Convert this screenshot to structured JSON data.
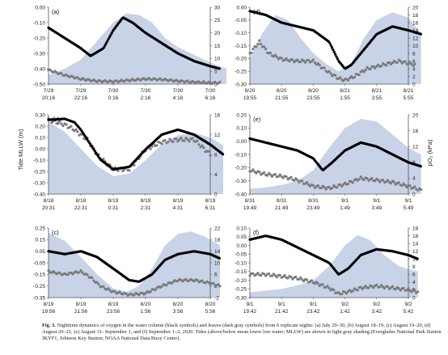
{
  "caption": {
    "label": "Fig. 3.",
    "text": "Nighttime dynamics of oxygen in the water column (black symbols) and leaves (dark gray symbols) from 6 replicate nights: (a) July 29–30, (b) August 18–19, (c) August 19–20, (d) August 20–21, (e) August 31- September 1, and (f) September 1–2, 2020. Tides (above/below mean lower low water; MLLW) are shown in light gray shading (Everglades National Park Station JKYF1, Johnson Key Station; NOAA National Data Buoy Center)."
  },
  "axis_titles": {
    "left": "Tide MLLW (m)",
    "right": "pO₂ (kPa)"
  },
  "colors": {
    "tide": "#c8d3e8",
    "water": "#000000",
    "leaf": "#7a7a7a"
  },
  "chart_data": [
    {
      "panel": "(a)",
      "type": "area",
      "ylim": [
        -0.5,
        0.0
      ],
      "yticks": [
        "0.00",
        "-0.10",
        "-0.20",
        "-0.30",
        "-0.40",
        "-0.50"
      ],
      "y2lim": [
        0,
        30
      ],
      "y2ticks": [
        "30",
        "25",
        "20",
        "15",
        "10",
        "5",
        "0"
      ],
      "xticks": [
        [
          "7/29",
          "20:16"
        ],
        [
          "7/29",
          "22:16"
        ],
        [
          "7/30",
          "0:16"
        ],
        [
          "7/30",
          "2:16"
        ],
        [
          "7/30",
          "4:16"
        ],
        [
          "7/30",
          "6:16"
        ]
      ],
      "tide": [
        [
          0,
          -0.44
        ],
        [
          0.5,
          -0.4
        ],
        [
          1,
          -0.34
        ],
        [
          1.5,
          -0.22
        ],
        [
          2,
          -0.1
        ],
        [
          2.4,
          -0.04
        ],
        [
          2.8,
          -0.05
        ],
        [
          3.2,
          -0.1
        ],
        [
          3.6,
          -0.2
        ],
        [
          4,
          -0.26
        ],
        [
          4.5,
          -0.31
        ],
        [
          5,
          -0.36
        ],
        [
          5.5,
          -0.4
        ]
      ],
      "water": [
        [
          0,
          22
        ],
        [
          0.5,
          18
        ],
        [
          1,
          14
        ],
        [
          1.3,
          11
        ],
        [
          1.7,
          14
        ],
        [
          2,
          21
        ],
        [
          2.3,
          26
        ],
        [
          2.6,
          24
        ],
        [
          3,
          20
        ],
        [
          3.5,
          16
        ],
        [
          4,
          12
        ],
        [
          4.5,
          9
        ],
        [
          5,
          7
        ],
        [
          5.3,
          6
        ]
      ],
      "leaf": [
        [
          0,
          5.5
        ],
        [
          0.5,
          3.5
        ],
        [
          1,
          2
        ],
        [
          1.5,
          1.2
        ],
        [
          2,
          1
        ],
        [
          2.5,
          1.5
        ],
        [
          3,
          2
        ],
        [
          3.5,
          1.8
        ],
        [
          4,
          1.2
        ],
        [
          4.5,
          0.8
        ],
        [
          5,
          0.5
        ],
        [
          5.3,
          0.5
        ]
      ]
    },
    {
      "panel": "(b)",
      "type": "area",
      "ylim": [
        -0.4,
        0.3
      ],
      "yticks": [
        "0.30",
        "0.20",
        "0.10",
        "0.00",
        "-0.10",
        "-0.20",
        "-0.30",
        "-0.40"
      ],
      "y2lim": [
        0,
        16
      ],
      "y2ticks": [
        "16",
        "12",
        "8",
        "4",
        "0"
      ],
      "xticks": [
        [
          "8/18",
          "20:31"
        ],
        [
          "8/18",
          "22:31"
        ],
        [
          "8/19",
          "0:31"
        ],
        [
          "8/19",
          "2:31"
        ],
        [
          "8/19",
          "4:31"
        ],
        [
          "8/19",
          "6:31"
        ]
      ],
      "tide": [
        [
          0,
          0.24
        ],
        [
          0.5,
          0.15
        ],
        [
          1,
          0.0
        ],
        [
          1.5,
          -0.15
        ],
        [
          2,
          -0.24
        ],
        [
          2.5,
          -0.22
        ],
        [
          3,
          -0.1
        ],
        [
          3.5,
          0.04
        ],
        [
          4,
          0.12
        ],
        [
          4.5,
          0.14
        ],
        [
          5,
          0.1
        ],
        [
          5.4,
          0.03
        ]
      ],
      "water": [
        [
          0,
          15
        ],
        [
          0.5,
          15.2
        ],
        [
          0.8,
          14.5
        ],
        [
          1,
          13
        ],
        [
          1.3,
          10
        ],
        [
          1.6,
          7
        ],
        [
          2,
          5
        ],
        [
          2.5,
          5.5
        ],
        [
          3,
          9
        ],
        [
          3.5,
          12
        ],
        [
          4,
          13
        ],
        [
          4.5,
          12
        ],
        [
          5,
          10
        ],
        [
          5.4,
          8
        ]
      ],
      "leaf": [
        [
          0,
          15
        ],
        [
          0.5,
          14
        ],
        [
          0.8,
          13
        ],
        [
          1.2,
          11
        ],
        [
          1.5,
          8
        ],
        [
          2,
          5
        ],
        [
          2.5,
          5
        ],
        [
          3,
          9
        ],
        [
          3.5,
          10.5
        ],
        [
          4,
          11
        ],
        [
          4.5,
          11
        ],
        [
          5,
          8
        ]
      ]
    },
    {
      "panel": "(c)",
      "type": "area",
      "ylim": [
        -0.35,
        0.25
      ],
      "yticks": [
        "0.25",
        "0.15",
        "0.05",
        "-0.05",
        "-0.15",
        "-0.25",
        "-0.35"
      ],
      "y2lim": [
        -2,
        22
      ],
      "y2ticks": [
        "22",
        "18",
        "14",
        "10",
        "6",
        "2",
        "-2"
      ],
      "xticks": [
        [
          "8/19",
          "19:56"
        ],
        [
          "8/19",
          "21:56"
        ],
        [
          "8/19",
          "23:56"
        ],
        [
          "8/20",
          "1:56"
        ],
        [
          "8/20",
          "3:56"
        ],
        [
          "8/20",
          "5:56"
        ]
      ],
      "tide": [
        [
          0,
          0.21
        ],
        [
          0.5,
          0.14
        ],
        [
          1,
          0.0
        ],
        [
          1.5,
          -0.15
        ],
        [
          2,
          -0.27
        ],
        [
          2.4,
          -0.3
        ],
        [
          2.8,
          -0.25
        ],
        [
          3.2,
          -0.1
        ],
        [
          3.6,
          0.1
        ],
        [
          4,
          0.2
        ],
        [
          4.4,
          0.22
        ],
        [
          4.8,
          0.18
        ],
        [
          5.3,
          0.1
        ]
      ],
      "water": [
        [
          0,
          14
        ],
        [
          0.5,
          13
        ],
        [
          1,
          14
        ],
        [
          1.5,
          12
        ],
        [
          2,
          8
        ],
        [
          2.5,
          4
        ],
        [
          2.8,
          3.5
        ],
        [
          3.2,
          6
        ],
        [
          3.6,
          11
        ],
        [
          4,
          13
        ],
        [
          4.5,
          14
        ],
        [
          5,
          13
        ],
        [
          5.3,
          11.5
        ]
      ],
      "leaf": [
        [
          0,
          7
        ],
        [
          0.5,
          6
        ],
        [
          1,
          7
        ],
        [
          1.3,
          5
        ],
        [
          1.6,
          2
        ],
        [
          2,
          0
        ],
        [
          2.5,
          -1
        ],
        [
          3,
          -0.5
        ],
        [
          3.5,
          2
        ],
        [
          4,
          4
        ],
        [
          4.5,
          4
        ],
        [
          5,
          3
        ],
        [
          5.3,
          2
        ]
      ]
    },
    {
      "panel": "(d)",
      "type": "area",
      "ylim": [
        -0.3,
        0.0
      ],
      "yticks": [
        "0.00",
        "-0.05",
        "-0.10",
        "-0.15",
        "-0.20",
        "-0.25",
        "-0.30"
      ],
      "y2lim": [
        0,
        20
      ],
      "y2ticks": [
        "20",
        "18",
        "16",
        "14",
        "12",
        "10",
        "8",
        "6",
        "4",
        "2",
        "0"
      ],
      "xticks": [
        [
          "8/20",
          "19:55"
        ],
        [
          "8/20",
          "21:55"
        ],
        [
          "8/20",
          "23:55"
        ],
        [
          "8/21",
          "1:55"
        ],
        [
          "8/21",
          "3:55"
        ],
        [
          "8/21",
          "5:55"
        ]
      ],
      "tide": [
        [
          0,
          -0.2
        ],
        [
          0.4,
          -0.1
        ],
        [
          0.8,
          -0.03
        ],
        [
          1.2,
          -0.05
        ],
        [
          1.6,
          -0.12
        ],
        [
          2,
          -0.18
        ],
        [
          2.4,
          -0.22
        ],
        [
          2.8,
          -0.25
        ],
        [
          3.2,
          -0.22
        ],
        [
          3.6,
          -0.12
        ],
        [
          4,
          -0.05
        ],
        [
          4.5,
          -0.02
        ],
        [
          5,
          -0.04
        ],
        [
          5.4,
          -0.1
        ]
      ],
      "water": [
        [
          0,
          19
        ],
        [
          0.5,
          18
        ],
        [
          1,
          16
        ],
        [
          1.5,
          15
        ],
        [
          2,
          14
        ],
        [
          2.5,
          11
        ],
        [
          2.8,
          6
        ],
        [
          3,
          4
        ],
        [
          3.2,
          5
        ],
        [
          3.5,
          8
        ],
        [
          4,
          13
        ],
        [
          4.5,
          15
        ],
        [
          5,
          14
        ],
        [
          5.4,
          13
        ]
      ],
      "leaf": [
        [
          0,
          8
        ],
        [
          0.3,
          11
        ],
        [
          0.6,
          8
        ],
        [
          1,
          6.5
        ],
        [
          1.5,
          6
        ],
        [
          2,
          6
        ],
        [
          2.5,
          3
        ],
        [
          2.8,
          1.5
        ],
        [
          3,
          1
        ],
        [
          3.3,
          2
        ],
        [
          3.7,
          4
        ],
        [
          4.2,
          5
        ],
        [
          4.7,
          6
        ],
        [
          5.2,
          5
        ]
      ]
    },
    {
      "panel": "(e)",
      "type": "area",
      "ylim": [
        -0.4,
        0.2
      ],
      "yticks": [
        "0.20",
        "0.10",
        "0.00",
        "-0.10",
        "-0.20",
        "-0.30",
        "-0.40"
      ],
      "y2lim": [
        0,
        20
      ],
      "y2ticks": [
        "20",
        "16",
        "12",
        "8",
        "4",
        "0"
      ],
      "xticks": [
        [
          "8/31",
          "19:49"
        ],
        [
          "8/31",
          "21:49"
        ],
        [
          "8/31",
          "23:49"
        ],
        [
          "9/1",
          "1:49"
        ],
        [
          "9/1",
          "3:49"
        ],
        [
          "9/1",
          "5:49"
        ]
      ],
      "tide": [
        [
          0,
          -0.36
        ],
        [
          0.5,
          -0.35
        ],
        [
          1,
          -0.33
        ],
        [
          1.5,
          -0.3
        ],
        [
          2,
          -0.22
        ],
        [
          2.5,
          -0.05
        ],
        [
          3,
          0.1
        ],
        [
          3.5,
          0.17
        ],
        [
          4,
          0.15
        ],
        [
          4.5,
          0.05
        ],
        [
          5,
          -0.05
        ],
        [
          5.4,
          -0.1
        ]
      ],
      "water": [
        [
          0,
          14
        ],
        [
          0.5,
          13
        ],
        [
          1,
          12
        ],
        [
          1.5,
          11
        ],
        [
          2,
          9
        ],
        [
          2.3,
          6
        ],
        [
          2.6,
          8
        ],
        [
          3,
          11
        ],
        [
          3.5,
          13
        ],
        [
          4,
          12
        ],
        [
          4.5,
          10
        ],
        [
          5,
          8
        ],
        [
          5.4,
          7
        ]
      ],
      "leaf": [
        [
          0,
          6
        ],
        [
          0.5,
          5
        ],
        [
          1,
          4.5
        ],
        [
          1.5,
          3.5
        ],
        [
          2,
          2
        ],
        [
          2.5,
          1.5
        ],
        [
          3,
          2.5
        ],
        [
          3.5,
          4
        ],
        [
          4,
          3.5
        ],
        [
          4.5,
          3
        ],
        [
          5,
          2
        ],
        [
          5.4,
          1
        ]
      ]
    },
    {
      "panel": "(f)",
      "type": "area",
      "ylim": [
        -0.3,
        0.1
      ],
      "yticks": [
        "0.10",
        "0.05",
        "0.00",
        "-0.05",
        "-0.10",
        "-0.15",
        "-0.20",
        "-0.25",
        "-0.30"
      ],
      "y2lim": [
        0,
        18
      ],
      "y2ticks": [
        "18",
        "16",
        "14",
        "12",
        "10",
        "8",
        "6",
        "4",
        "2",
        "0"
      ],
      "xticks": [
        [
          "9/1",
          "19:42"
        ],
        [
          "9/1",
          "21:42"
        ],
        [
          "9/1",
          "23:42"
        ],
        [
          "9/2",
          "1:42"
        ],
        [
          "9/2",
          "3:42"
        ],
        [
          "9/2",
          "5:42"
        ]
      ],
      "tide": [
        [
          0,
          -0.27
        ],
        [
          0.5,
          -0.26
        ],
        [
          1,
          -0.25
        ],
        [
          1.5,
          -0.23
        ],
        [
          2,
          -0.2
        ],
        [
          2.5,
          -0.12
        ],
        [
          3,
          0.0
        ],
        [
          3.4,
          0.06
        ],
        [
          3.8,
          0.03
        ],
        [
          4.2,
          -0.05
        ],
        [
          4.7,
          -0.12
        ],
        [
          5.3,
          -0.15
        ]
      ],
      "water": [
        [
          0,
          15
        ],
        [
          0.5,
          16
        ],
        [
          1,
          15
        ],
        [
          1.5,
          13
        ],
        [
          2,
          11
        ],
        [
          2.5,
          9
        ],
        [
          2.8,
          6
        ],
        [
          3.1,
          7.5
        ],
        [
          3.5,
          11
        ],
        [
          4,
          12.5
        ],
        [
          4.5,
          12
        ],
        [
          5,
          11
        ],
        [
          5.3,
          10
        ]
      ],
      "leaf": [
        [
          0,
          6
        ],
        [
          0.5,
          6
        ],
        [
          1,
          5.5
        ],
        [
          1.5,
          5
        ],
        [
          2,
          4
        ],
        [
          2.5,
          2.5
        ],
        [
          2.8,
          1
        ],
        [
          3.1,
          1.5
        ],
        [
          3.5,
          2.5
        ],
        [
          4,
          3
        ],
        [
          4.5,
          2.5
        ],
        [
          5,
          2
        ],
        [
          5.3,
          1.5
        ]
      ]
    }
  ]
}
